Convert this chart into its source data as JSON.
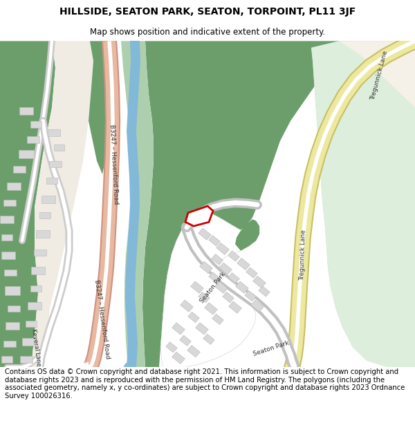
{
  "title": "HILLSIDE, SEATON PARK, SEATON, TORPOINT, PL11 3JF",
  "subtitle": "Map shows position and indicative extent of the property.",
  "footer": "Contains OS data © Crown copyright and database right 2021. This information is subject to Crown copyright and database rights 2023 and is reproduced with the permission of\nHM Land Registry. The polygons (including the associated geometry, namely x, y\nco-ordinates) are subject to Crown copyright and database rights 2023 Ordnance Survey\n100026316.",
  "bg_color": "#ffffff",
  "map_bg": "#f5f0ea",
  "dark_green": "#6b9e6b",
  "mid_green": "#8db88d",
  "light_green": "#aecfae",
  "pale_green": "#c5ddc5",
  "very_pale_green": "#ddeedd",
  "offwhite": "#f0ece4",
  "road_salmon_fill": "#e8b8a0",
  "road_salmon_edge": "#d09080",
  "road_yellow_fill": "#ede8a0",
  "road_yellow_edge": "#c8c060",
  "river_blue": "#82b8d8",
  "building_fill": "#d8d8d8",
  "building_edge": "#b8b8b8",
  "plot_red": "#cc0000",
  "title_fontsize": 10,
  "subtitle_fontsize": 8.5,
  "footer_fontsize": 7.2,
  "label_color": "#333333",
  "label_size": 6.5
}
